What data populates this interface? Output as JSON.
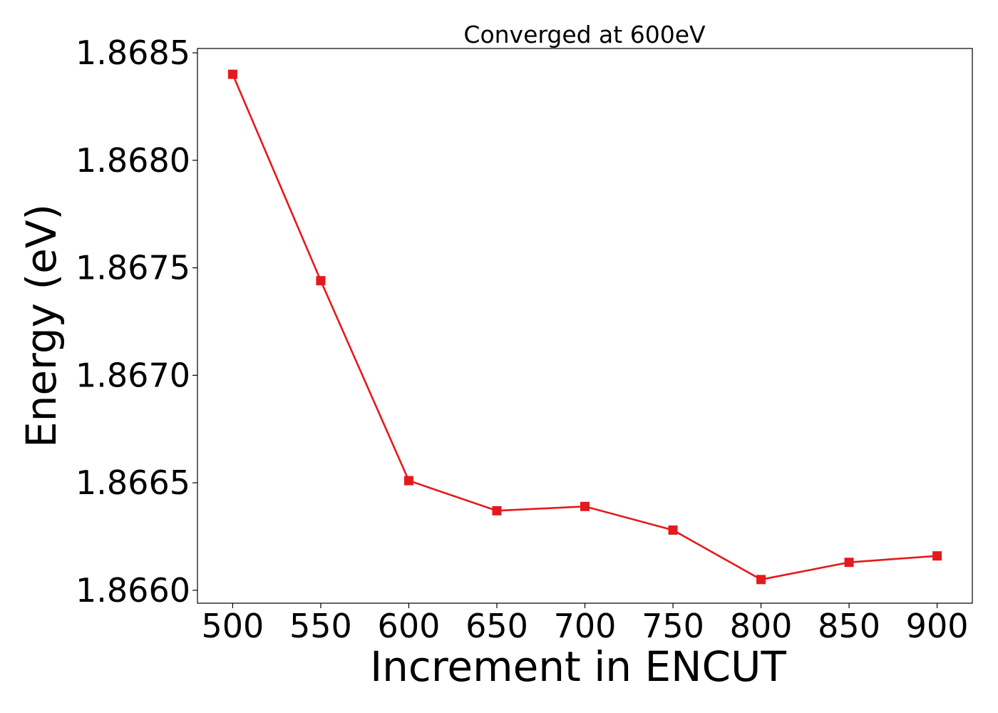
{
  "chart_data": {
    "type": "line",
    "title": "Converged at 600eV",
    "xlabel": "Increment in ENCUT",
    "ylabel": "Energy (eV)",
    "xlim": [
      480,
      920
    ],
    "ylim": [
      1.86594,
      1.86852
    ],
    "grid": false,
    "x_ticks": [
      500,
      550,
      600,
      650,
      700,
      750,
      800,
      850,
      900
    ],
    "y_ticks": [
      "1.8660",
      "1.8665",
      "1.8670",
      "1.8675",
      "1.8680",
      "1.8685"
    ],
    "series": [
      {
        "color": "#e41a1c",
        "marker": "square",
        "x": [
          500,
          550,
          600,
          650,
          700,
          750,
          800,
          850,
          900
        ],
        "y": [
          1.8684,
          1.86744,
          1.86651,
          1.86637,
          1.86639,
          1.86628,
          1.86605,
          1.86613,
          1.86616
        ]
      }
    ]
  }
}
